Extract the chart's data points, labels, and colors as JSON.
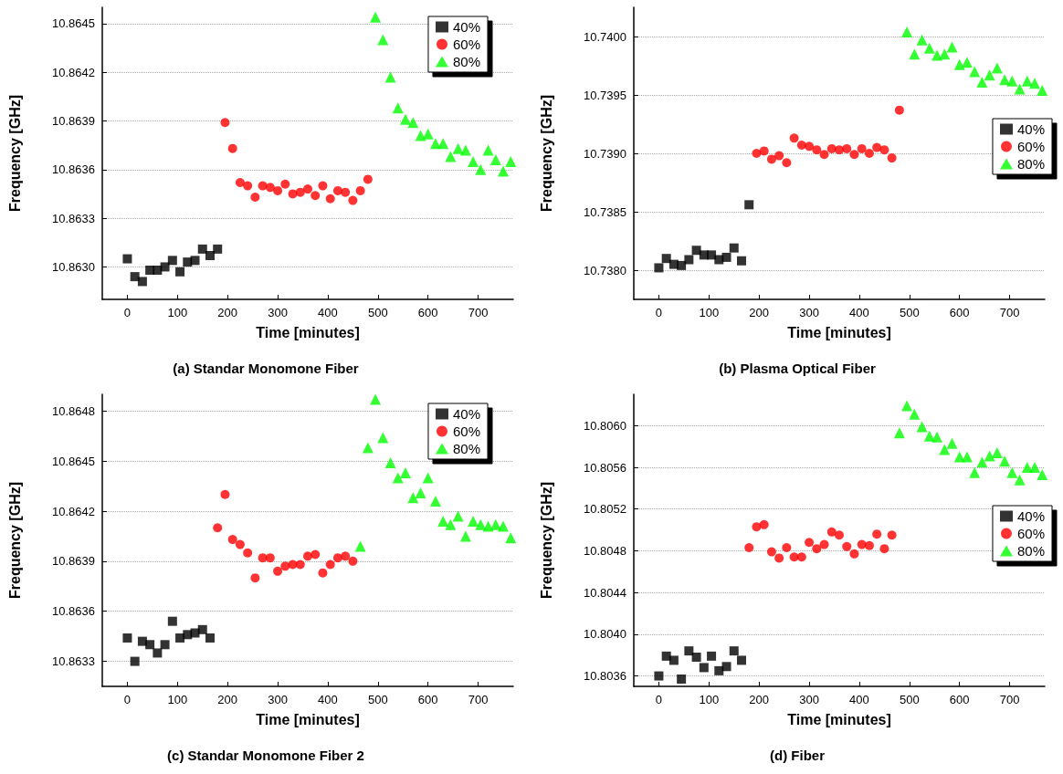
{
  "chart_data": [
    {
      "type": "scatter",
      "title": "(a) Standar Monomone Fiber",
      "xlabel": "Time [minutes]",
      "ylabel": "Frequency [GHz]",
      "xlim": [
        -50,
        770
      ],
      "xticks": [
        0,
        100,
        200,
        300,
        400,
        500,
        600,
        700
      ],
      "ylim": [
        10.8628,
        10.8646
      ],
      "yticks": [
        {
          "value": 10.863,
          "label": "10.8630"
        },
        10.8633,
        10.8636,
        10.8639,
        10.8642,
        10.8645
      ],
      "grid": "y",
      "legend": "top right",
      "series": [
        {
          "name": "40%",
          "color": "#000000",
          "marker": "square",
          "x": [
            0,
            15,
            30,
            45,
            60,
            75,
            90,
            105,
            120,
            135,
            150,
            165,
            180
          ],
          "values": [
            10.86305,
            10.86294,
            10.86291,
            10.86298,
            10.86298,
            10.863,
            10.86304,
            10.86297,
            10.86303,
            10.86304,
            10.86311,
            10.86307,
            10.86311
          ]
        },
        {
          "name": "60%",
          "color": "#ff0000",
          "marker": "circle",
          "x": [
            195,
            210,
            225,
            240,
            255,
            270,
            285,
            300,
            315,
            330,
            345,
            360,
            375,
            390,
            405,
            420,
            435,
            450,
            465,
            480
          ],
          "values": [
            10.86389,
            10.86373,
            10.86352,
            10.8635,
            10.86343,
            10.8635,
            10.86349,
            10.86347,
            10.86351,
            10.86345,
            10.86346,
            10.86348,
            10.86344,
            10.8635,
            10.86342,
            10.86347,
            10.86346,
            10.86341,
            10.86347,
            10.86354
          ]
        },
        {
          "name": "80%",
          "color": "#00ff00",
          "marker": "triangle",
          "x": [
            495,
            510,
            525,
            540,
            555,
            570,
            585,
            600,
            615,
            630,
            645,
            660,
            675,
            690,
            705,
            720,
            735,
            750,
            765
          ],
          "values": [
            10.86454,
            10.8644,
            10.86417,
            10.86398,
            10.86391,
            10.86389,
            10.86381,
            10.86382,
            10.86376,
            10.86376,
            10.86368,
            10.86373,
            10.86372,
            10.86365,
            10.8636,
            10.86372,
            10.86366,
            10.86359,
            10.86365
          ]
        }
      ]
    },
    {
      "type": "scatter",
      "title": "(b) Plasma Optical Fiber",
      "xlabel": "Time [minutes]",
      "ylabel": "Frequency [GHz]",
      "xlim": [
        -50,
        770
      ],
      "xticks": [
        0,
        100,
        200,
        300,
        400,
        500,
        600,
        700
      ],
      "ylim": [
        10.73775,
        10.74025
      ],
      "yticks": [
        {
          "value": 10.738,
          "label": "10.7380"
        },
        10.7385,
        {
          "value": 10.739,
          "label": "10.7390"
        },
        10.7395,
        {
          "value": 10.74,
          "label": "10.7400"
        }
      ],
      "grid": "y",
      "legend": "right",
      "series": [
        {
          "name": "40%",
          "color": "#000000",
          "marker": "square",
          "x": [
            0,
            15,
            30,
            45,
            60,
            75,
            90,
            105,
            120,
            135,
            150,
            165,
            180
          ],
          "values": [
            10.73802,
            10.7381,
            10.73805,
            10.73804,
            10.73809,
            10.73817,
            10.73813,
            10.73813,
            10.73809,
            10.73811,
            10.73819,
            10.73808,
            10.73856
          ]
        },
        {
          "name": "60%",
          "color": "#ff0000",
          "marker": "circle",
          "x": [
            195,
            210,
            225,
            240,
            255,
            270,
            285,
            300,
            315,
            330,
            345,
            360,
            375,
            390,
            405,
            420,
            435,
            450,
            465,
            480
          ],
          "values": [
            10.739,
            10.73902,
            10.73895,
            10.73898,
            10.73892,
            10.73913,
            10.73907,
            10.73906,
            10.73903,
            10.73899,
            10.73904,
            10.73903,
            10.73904,
            10.73899,
            10.73904,
            10.739,
            10.73905,
            10.73903,
            10.73896,
            10.73937
          ]
        },
        {
          "name": "80%",
          "color": "#00ff00",
          "marker": "triangle",
          "x": [
            495,
            510,
            525,
            540,
            555,
            570,
            585,
            600,
            615,
            630,
            645,
            660,
            675,
            690,
            705,
            720,
            735,
            750,
            765
          ],
          "values": [
            10.74004,
            10.73985,
            10.73997,
            10.7399,
            10.73984,
            10.73985,
            10.73991,
            10.73976,
            10.73978,
            10.7397,
            10.73961,
            10.73967,
            10.73973,
            10.73963,
            10.73962,
            10.73955,
            10.73962,
            10.7396,
            10.73954
          ]
        }
      ]
    },
    {
      "type": "scatter",
      "title": "(c) Standar Monomone Fiber 2",
      "xlabel": "Time [minutes]",
      "ylabel": "Frequency [GHz]",
      "xlim": [
        -50,
        770
      ],
      "xticks": [
        0,
        100,
        200,
        300,
        400,
        500,
        600,
        700
      ],
      "ylim": [
        10.86315,
        10.8649
      ],
      "yticks": [
        10.8633,
        10.8636,
        10.8639,
        10.8642,
        10.8645,
        10.8648
      ],
      "grid": "y",
      "legend": "top right",
      "series": [
        {
          "name": "40%",
          "color": "#000000",
          "marker": "square",
          "x": [
            0,
            15,
            30,
            45,
            60,
            75,
            90,
            105,
            120,
            135,
            150,
            165
          ],
          "values": [
            10.86344,
            10.8633,
            10.86342,
            10.8634,
            10.86335,
            10.8634,
            10.86354,
            10.86344,
            10.86346,
            10.86347,
            10.86349,
            10.86344
          ]
        },
        {
          "name": "60%",
          "color": "#ff0000",
          "marker": "circle",
          "x": [
            180,
            195,
            210,
            225,
            240,
            255,
            270,
            285,
            300,
            315,
            330,
            345,
            360,
            375,
            390,
            405,
            420,
            435,
            450
          ],
          "values": [
            10.8641,
            10.8643,
            10.86403,
            10.864,
            10.86395,
            10.8638,
            10.86392,
            10.86392,
            10.86384,
            10.86387,
            10.86388,
            10.86388,
            10.86393,
            10.86394,
            10.86383,
            10.86388,
            10.86392,
            10.86393,
            10.8639
          ]
        },
        {
          "name": "80%",
          "color": "#00ff00",
          "marker": "triangle",
          "x": [
            465,
            480,
            495,
            510,
            525,
            540,
            555,
            570,
            585,
            600,
            615,
            630,
            645,
            660,
            675,
            690,
            705,
            720,
            735,
            750,
            765
          ],
          "values": [
            10.86399,
            10.86458,
            10.86487,
            10.86464,
            10.86449,
            10.8644,
            10.86443,
            10.86428,
            10.86431,
            10.8644,
            10.86426,
            10.86414,
            10.86412,
            10.86417,
            10.86405,
            10.86414,
            10.86412,
            10.86411,
            10.86412,
            10.86411,
            10.86404
          ]
        }
      ]
    },
    {
      "type": "scatter",
      "title": "(d) Fiber",
      "xlabel": "Time [minutes]",
      "ylabel": "Frequency [GHz]",
      "xlim": [
        -50,
        770
      ],
      "xticks": [
        0,
        100,
        200,
        300,
        400,
        500,
        600,
        700
      ],
      "ylim": [
        10.8035,
        10.8063
      ],
      "yticks": [
        10.8036,
        {
          "value": 10.804,
          "label": "10.8040"
        },
        10.8044,
        10.8048,
        10.8052,
        10.8056,
        {
          "value": 10.806,
          "label": "10.8060"
        }
      ],
      "grid": "y",
      "legend": "right",
      "series": [
        {
          "name": "40%",
          "color": "#000000",
          "marker": "square",
          "x": [
            0,
            15,
            30,
            45,
            60,
            75,
            90,
            105,
            120,
            135,
            150,
            165
          ],
          "values": [
            10.8036,
            10.80379,
            10.80375,
            10.80357,
            10.80384,
            10.80378,
            10.80368,
            10.80379,
            10.80365,
            10.80369,
            10.80384,
            10.80375
          ]
        },
        {
          "name": "60%",
          "color": "#ff0000",
          "marker": "circle",
          "x": [
            180,
            195,
            210,
            225,
            240,
            255,
            270,
            285,
            300,
            315,
            330,
            345,
            360,
            375,
            390,
            405,
            420,
            435,
            450,
            465
          ],
          "values": [
            10.80483,
            10.80503,
            10.80505,
            10.80479,
            10.80473,
            10.80483,
            10.80474,
            10.80474,
            10.80488,
            10.80482,
            10.80486,
            10.80498,
            10.80495,
            10.80484,
            10.80477,
            10.80486,
            10.80485,
            10.80496,
            10.80482,
            10.80495
          ]
        },
        {
          "name": "80%",
          "color": "#00ff00",
          "marker": "triangle",
          "x": [
            480,
            495,
            510,
            525,
            540,
            555,
            570,
            585,
            600,
            615,
            630,
            645,
            660,
            675,
            690,
            705,
            720,
            735,
            750,
            765
          ],
          "values": [
            10.80593,
            10.80619,
            10.80611,
            10.80599,
            10.8059,
            10.80589,
            10.80577,
            10.80583,
            10.8057,
            10.8057,
            10.80555,
            10.80565,
            10.80571,
            10.80574,
            10.80566,
            10.80555,
            10.80548,
            10.8056,
            10.8056,
            10.80553
          ]
        }
      ]
    }
  ]
}
